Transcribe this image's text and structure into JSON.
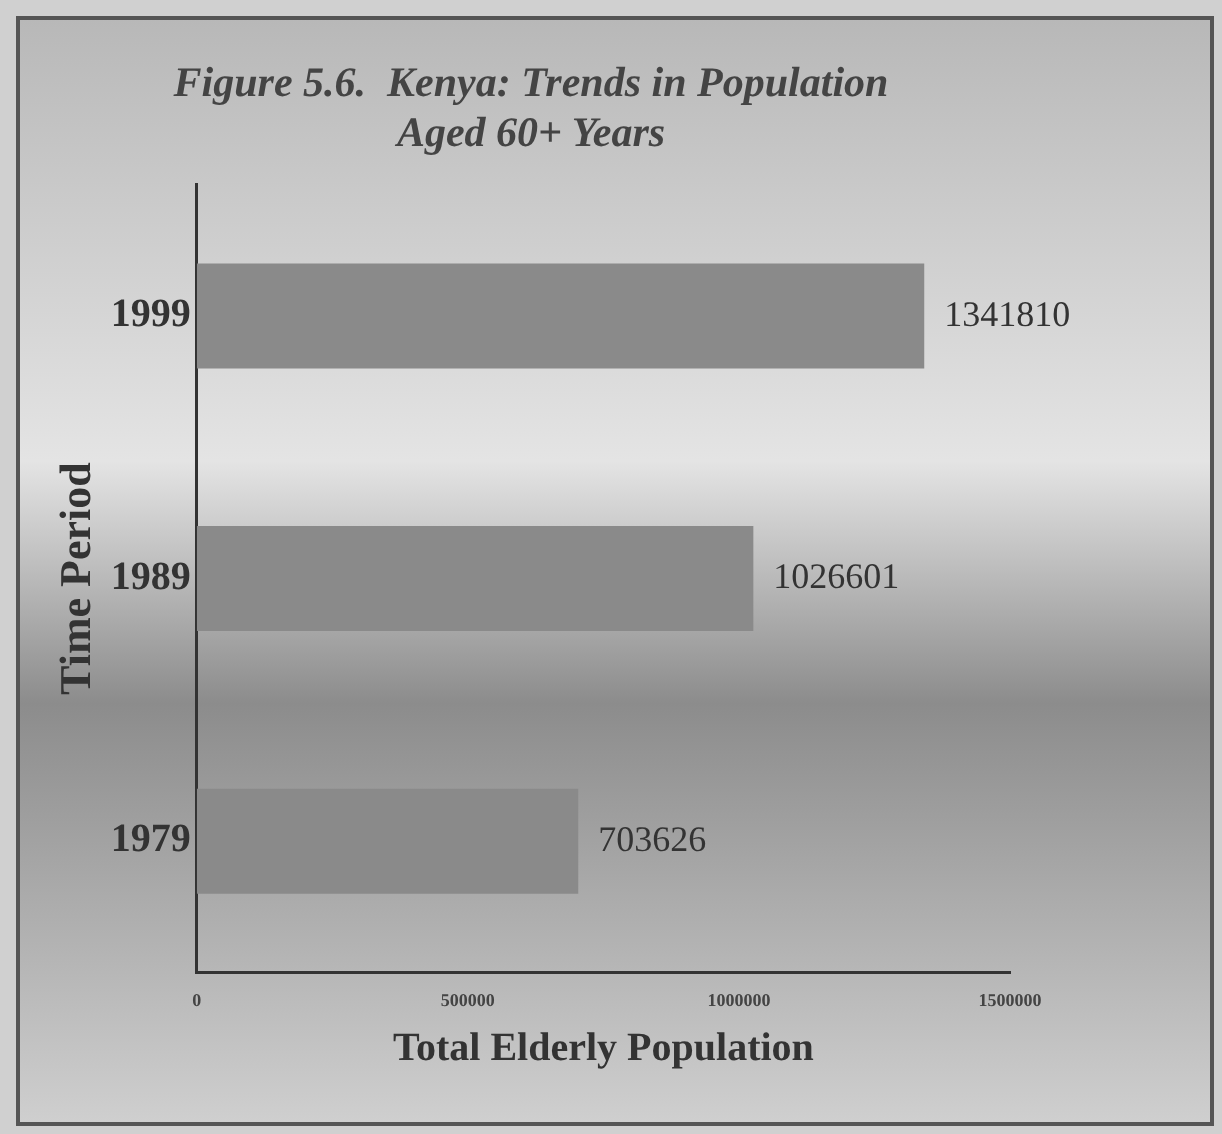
{
  "chart_data": {
    "type": "bar",
    "orientation": "horizontal",
    "title": "Figure 5.6.  Kenya: Trends in Population\nAged 60+ Years",
    "xlabel": "Total Elderly Population",
    "ylabel": "Time Period",
    "categories": [
      "1999",
      "1989",
      "1979"
    ],
    "values": [
      1341810,
      1026601,
      703626
    ],
    "color": "#8a8a8a",
    "xlim": [
      0,
      1500000
    ],
    "xticks": [
      0,
      500000,
      1000000,
      1500000
    ],
    "grid": false,
    "legend": false,
    "data_labels": true
  }
}
